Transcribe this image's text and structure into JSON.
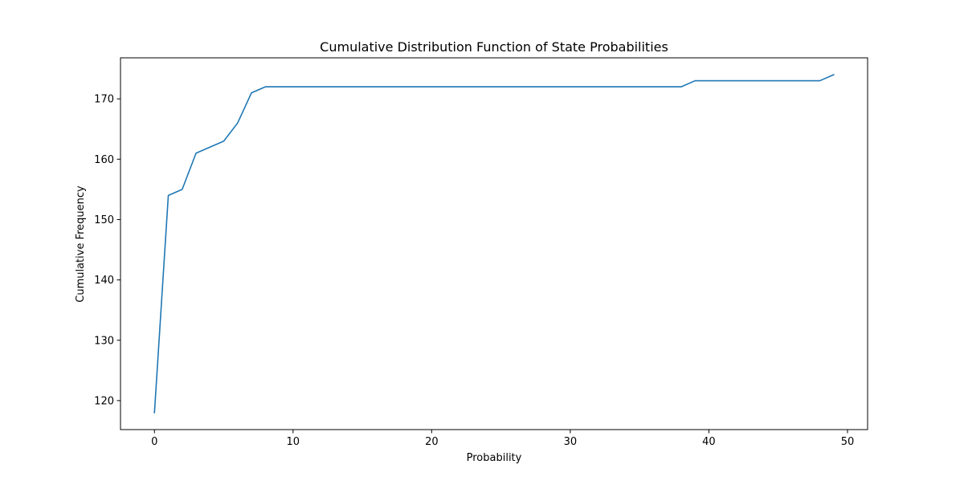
{
  "chart_data": {
    "type": "line",
    "title": "Cumulative Distribution Function of State Probabilities",
    "xlabel": "Probability",
    "ylabel": "Cumulative Frequency",
    "xlim": [
      -2.45,
      51.45
    ],
    "ylim": [
      115.2,
      176.8
    ],
    "xticks": [
      0,
      10,
      20,
      30,
      40,
      50
    ],
    "yticks": [
      120,
      130,
      140,
      150,
      160,
      170
    ],
    "grid": false,
    "series": [
      {
        "color": "#1f77b4",
        "x": [
          0,
          1,
          2,
          3,
          4,
          5,
          6,
          7,
          8,
          9,
          10,
          11,
          12,
          13,
          14,
          15,
          16,
          17,
          18,
          19,
          20,
          21,
          22,
          23,
          24,
          25,
          26,
          27,
          28,
          29,
          30,
          31,
          32,
          33,
          34,
          35,
          36,
          37,
          38,
          39,
          40,
          41,
          42,
          43,
          44,
          45,
          46,
          47,
          48,
          49
        ],
        "y": [
          118,
          154,
          155,
          161,
          162,
          163,
          166,
          171,
          172,
          172,
          172,
          172,
          172,
          172,
          172,
          172,
          172,
          172,
          172,
          172,
          172,
          172,
          172,
          172,
          172,
          172,
          172,
          172,
          172,
          172,
          172,
          172,
          172,
          172,
          172,
          172,
          172,
          172,
          172,
          173,
          173,
          173,
          173,
          173,
          173,
          173,
          173,
          173,
          173,
          174
        ]
      }
    ]
  }
}
